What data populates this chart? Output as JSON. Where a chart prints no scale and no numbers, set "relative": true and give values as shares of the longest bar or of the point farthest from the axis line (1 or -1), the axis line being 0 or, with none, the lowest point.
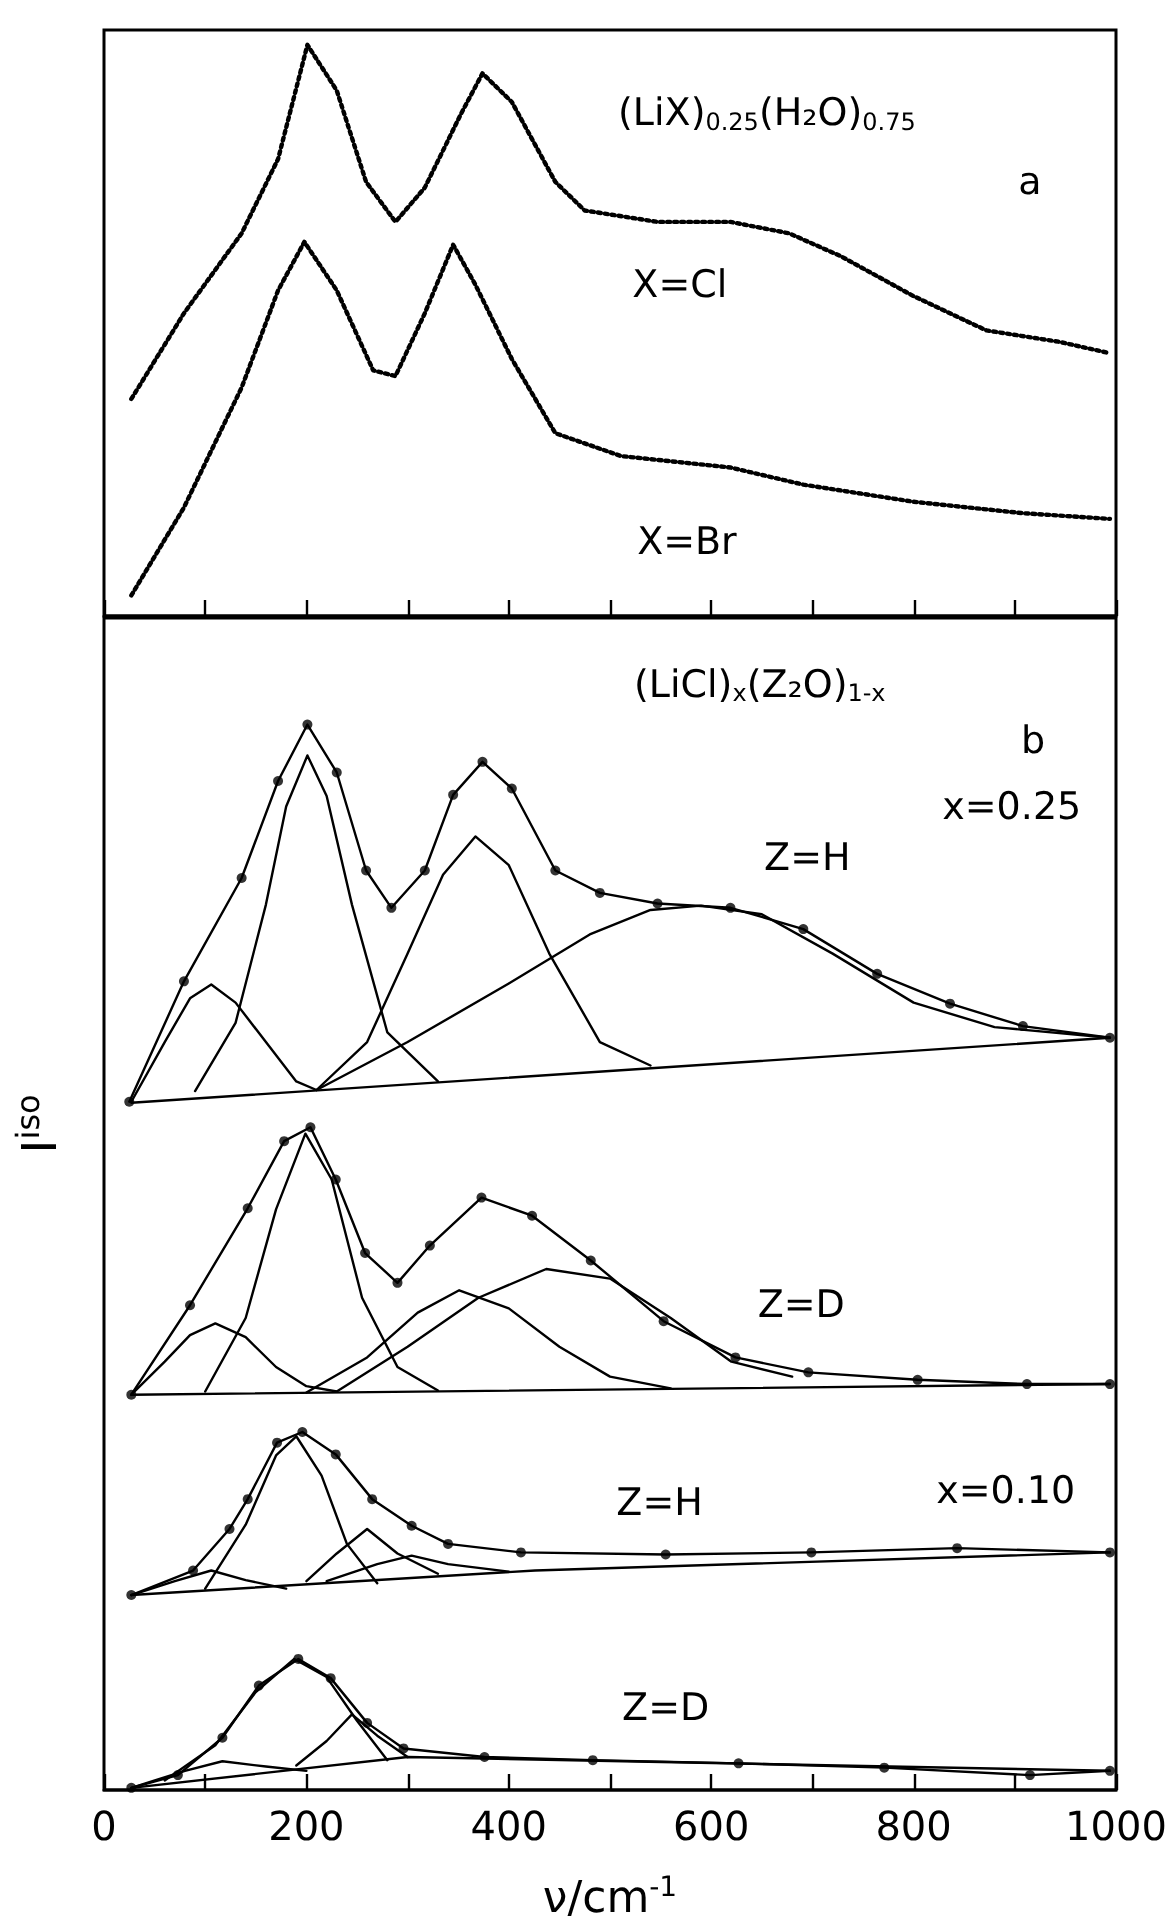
{
  "chart_data": [
    {
      "type": "line",
      "relative": true,
      "xlim": [
        0,
        1000
      ],
      "xticks": [
        0,
        100,
        200,
        300,
        400,
        500,
        600,
        700,
        800,
        900,
        1000
      ],
      "tick_labels": false,
      "grid": false,
      "marker": "none",
      "series": [
        {
          "color": "#000000",
          "line_style": "dotted",
          "x": [
            27,
            79,
            136,
            172,
            201,
            230,
            259,
            288,
            317,
            353,
            374,
            403,
            446,
            475,
            547,
            619,
            677,
            728,
            800,
            872,
            944,
            994
          ],
          "values": [
            0.38,
            0.53,
            0.67,
            0.8,
            1,
            0.92,
            0.76,
            0.69,
            0.75,
            0.88,
            0.95,
            0.9,
            0.76,
            0.71,
            0.69,
            0.69,
            0.67,
            0.63,
            0.56,
            0.5,
            0.48,
            0.46
          ]
        },
        {
          "color": "#000000",
          "line_style": "dotted",
          "x": [
            27,
            79,
            136,
            172,
            198,
            230,
            266,
            288,
            317,
            345,
            367,
            403,
            446,
            511,
            619,
            691,
            800,
            908,
            994
          ],
          "values": [
            0.036,
            0.19,
            0.4,
            0.57,
            0.655,
            0.57,
            0.43,
            0.42,
            0.53,
            0.65,
            0.58,
            0.45,
            0.32,
            0.28,
            0.26,
            0.23,
            0.2,
            0.18,
            0.17
          ]
        }
      ],
      "annotations": [
        "(LiX)$_{0.25}$(H₂O)$_{0.75}$",
        "a",
        "X=Cl",
        "X=Br"
      ]
    },
    {
      "type": "line",
      "relative": true,
      "xlim": [
        0,
        1000
      ],
      "xticks": [
        0,
        {
          "value": 100,
          "label": null
        },
        200,
        {
          "value": 300,
          "label": null
        },
        400,
        {
          "value": 500,
          "label": null
        },
        600,
        {
          "value": 700,
          "label": null
        },
        800,
        {
          "value": 900,
          "label": null
        },
        1000
      ],
      "tick_labels": "x",
      "grid": false,
      "marker": "none",
      "xlabel": "ν/cm$^{-1}$",
      "ylabel": "I$^{iso}$",
      "series": [
        {
          "type": "scatter",
          "marker": "circle",
          "color": "#000000",
          "x": [
            25,
            79,
            136,
            172,
            201,
            230,
            259,
            284,
            317,
            345,
            374,
            403,
            446,
            490,
            547,
            619,
            691,
            764,
            836,
            908,
            994
          ],
          "values": [
            0.646,
            0.759,
            0.856,
            0.947,
            1,
            0.955,
            0.863,
            0.828,
            0.863,
            0.934,
            0.965,
            0.94,
            0.863,
            0.842,
            0.832,
            0.828,
            0.808,
            0.766,
            0.738,
            0.717,
            0.706
          ]
        },
        {
          "color": "#000000",
          "line_style": "solid",
          "x": [
            25,
            79,
            136,
            172,
            201,
            230,
            259,
            284,
            317,
            345,
            374,
            403,
            446,
            490,
            547,
            619,
            691,
            764,
            836,
            908,
            994
          ],
          "values": [
            0.646,
            0.759,
            0.856,
            0.947,
            1,
            0.955,
            0.863,
            0.828,
            0.863,
            0.934,
            0.965,
            0.94,
            0.863,
            0.842,
            0.832,
            0.828,
            0.808,
            0.766,
            0.738,
            0.717,
            0.706
          ]
        },
        {
          "color": "#000000",
          "line_style": "solid",
          "x": [
            27,
            60,
            85,
            106,
            130,
            160,
            190,
            210
          ],
          "values": [
            0.646,
            0.702,
            0.743,
            0.756,
            0.739,
            0.702,
            0.665,
            0.657
          ]
        },
        {
          "color": "#000000",
          "line_style": "solid",
          "x": [
            90,
            130,
            160,
            180,
            201,
            220,
            245,
            280,
            330
          ],
          "values": [
            0.656,
            0.72,
            0.831,
            0.923,
            0.971,
            0.933,
            0.831,
            0.711,
            0.665
          ]
        },
        {
          "color": "#000000",
          "line_style": "solid",
          "x": [
            210,
            260,
            300,
            335,
            367,
            400,
            440,
            490,
            540
          ],
          "values": [
            0.657,
            0.702,
            0.785,
            0.859,
            0.895,
            0.868,
            0.785,
            0.702,
            0.68
          ]
        },
        {
          "color": "#000000",
          "line_style": "solid",
          "x": [
            210,
            300,
            400,
            480,
            540,
            590,
            650,
            720,
            800,
            880,
            994
          ],
          "values": [
            0.657,
            0.702,
            0.757,
            0.803,
            0.826,
            0.83,
            0.822,
            0.785,
            0.739,
            0.716,
            0.706
          ]
        },
        {
          "color": "#000000",
          "line_style": "solid",
          "x": [
            27,
            994
          ],
          "values": [
            0.645,
            0.706
          ]
        },
        {
          "type": "scatter",
          "marker": "circle",
          "color": "#000000",
          "x": [
            27,
            85,
            142,
            178,
            204,
            229,
            258,
            290,
            322,
            373,
            423,
            481,
            553,
            624,
            696,
            804,
            912,
            994
          ],
          "values": [
            0.371,
            0.455,
            0.546,
            0.609,
            0.622,
            0.573,
            0.504,
            0.476,
            0.511,
            0.556,
            0.539,
            0.497,
            0.44,
            0.406,
            0.392,
            0.385,
            0.381,
            0.381
          ]
        },
        {
          "color": "#000000",
          "line_style": "solid",
          "x": [
            27,
            85,
            142,
            178,
            204,
            229,
            258,
            290,
            322,
            373,
            423,
            481,
            553,
            624,
            696,
            804,
            912,
            994
          ],
          "values": [
            0.371,
            0.455,
            0.546,
            0.609,
            0.622,
            0.573,
            0.504,
            0.476,
            0.511,
            0.556,
            0.539,
            0.497,
            0.44,
            0.406,
            0.392,
            0.385,
            0.381,
            0.381
          ]
        },
        {
          "color": "#000000",
          "line_style": "solid",
          "x": [
            27,
            60,
            85,
            110,
            140,
            170,
            200,
            230
          ],
          "values": [
            0.371,
            0.402,
            0.427,
            0.438,
            0.425,
            0.397,
            0.379,
            0.374
          ]
        },
        {
          "color": "#000000",
          "line_style": "solid",
          "x": [
            100,
            140,
            170,
            199,
            225,
            255,
            290,
            330
          ],
          "values": [
            0.374,
            0.443,
            0.545,
            0.616,
            0.573,
            0.462,
            0.397,
            0.375
          ]
        },
        {
          "color": "#000000",
          "line_style": "solid",
          "x": [
            200,
            260,
            310,
            351,
            400,
            450,
            500,
            560
          ],
          "values": [
            0.373,
            0.406,
            0.448,
            0.469,
            0.452,
            0.416,
            0.388,
            0.377
          ]
        },
        {
          "color": "#000000",
          "line_style": "solid",
          "x": [
            230,
            300,
            370,
            437,
            500,
            560,
            620,
            680
          ],
          "values": [
            0.374,
            0.416,
            0.462,
            0.489,
            0.48,
            0.443,
            0.402,
            0.388
          ]
        },
        {
          "color": "#000000",
          "line_style": "solid",
          "x": [
            27,
            994
          ],
          "values": [
            0.371,
            0.381
          ]
        },
        {
          "type": "scatter",
          "marker": "circle",
          "color": "#000000",
          "x": [
            27,
            88,
            124,
            142,
            171,
            196,
            229,
            265,
            304,
            340,
            412,
            555,
            699,
            843,
            994
          ],
          "values": [
            0.183,
            0.206,
            0.245,
            0.273,
            0.326,
            0.336,
            0.315,
            0.273,
            0.248,
            0.231,
            0.223,
            0.221,
            0.223,
            0.227,
            0.223
          ]
        },
        {
          "color": "#000000",
          "line_style": "solid",
          "x": [
            27,
            88,
            124,
            142,
            171,
            196,
            229,
            265,
            304,
            340,
            412,
            555,
            699,
            843,
            994
          ],
          "values": [
            0.183,
            0.206,
            0.245,
            0.273,
            0.326,
            0.336,
            0.315,
            0.273,
            0.248,
            0.231,
            0.223,
            0.221,
            0.223,
            0.227,
            0.223
          ]
        },
        {
          "color": "#000000",
          "line_style": "solid",
          "x": [
            27,
            70,
            106,
            140,
            180
          ],
          "values": [
            0.183,
            0.196,
            0.206,
            0.197,
            0.189
          ]
        },
        {
          "color": "#000000",
          "line_style": "solid",
          "x": [
            100,
            140,
            170,
            190,
            215,
            240,
            270
          ],
          "values": [
            0.189,
            0.249,
            0.314,
            0.332,
            0.295,
            0.231,
            0.194
          ]
        },
        {
          "color": "#000000",
          "line_style": "solid",
          "x": [
            200,
            230,
            260,
            290,
            330
          ],
          "values": [
            0.196,
            0.222,
            0.245,
            0.222,
            0.203
          ]
        },
        {
          "color": "#000000",
          "line_style": "solid",
          "x": [
            220,
            270,
            304,
            340,
            400
          ],
          "values": [
            0.196,
            0.212,
            0.22,
            0.212,
            0.205
          ]
        },
        {
          "color": "#000000",
          "line_style": "solid",
          "x": [
            27,
            426,
            994
          ],
          "values": [
            0.183,
            0.206,
            0.223
          ]
        },
        {
          "type": "scatter",
          "marker": "circle",
          "color": "#000000",
          "x": [
            27,
            73,
            117,
            153,
            192,
            224,
            260,
            296,
            376,
            483,
            627,
            771,
            915,
            994
          ],
          "values": [
            0.002,
            0.014,
            0.049,
            0.098,
            0.123,
            0.105,
            0.063,
            0.039,
            0.031,
            0.028,
            0.025,
            0.021,
            0.014,
            0.018
          ]
        },
        {
          "color": "#000000",
          "line_style": "solid",
          "x": [
            27,
            73,
            117,
            153,
            192,
            224,
            260,
            296,
            376,
            483,
            627,
            771,
            915,
            994
          ],
          "values": [
            0.002,
            0.014,
            0.049,
            0.098,
            0.123,
            0.105,
            0.063,
            0.039,
            0.031,
            0.028,
            0.025,
            0.021,
            0.014,
            0.018
          ]
        },
        {
          "color": "#000000",
          "line_style": "solid",
          "x": [
            27,
            80,
            117,
            160,
            200
          ],
          "values": [
            0.002,
            0.018,
            0.027,
            0.022,
            0.018
          ]
        },
        {
          "color": "#000000",
          "line_style": "solid",
          "x": [
            60,
            110,
            150,
            188,
            220,
            250,
            280
          ],
          "values": [
            0.009,
            0.042,
            0.092,
            0.123,
            0.106,
            0.065,
            0.028
          ]
        },
        {
          "color": "#000000",
          "line_style": "solid",
          "x": [
            190,
            220,
            245,
            270,
            300
          ],
          "values": [
            0.023,
            0.046,
            0.071,
            0.051,
            0.031
          ]
        },
        {
          "color": "#000000",
          "line_style": "solid",
          "x": [
            27,
            300,
            994
          ],
          "values": [
            0.002,
            0.031,
            0.018
          ]
        }
      ],
      "annotations": [
        "(LiCl)$_{x}$(Z₂O)$_{1-x}$",
        "b",
        "x=0.25",
        "Z=H",
        "Z=D",
        "x=0.10",
        "Z=H",
        "Z=D"
      ]
    }
  ]
}
